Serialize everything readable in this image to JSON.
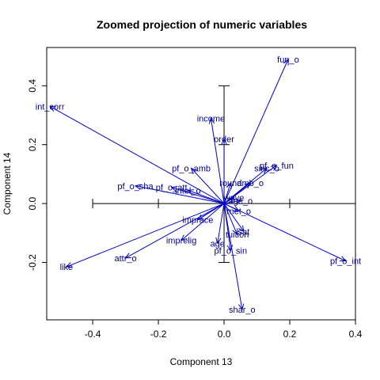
{
  "chart_data": {
    "type": "biplot",
    "title": "Zoomed projection of numeric variables",
    "xlabel": "Component 13",
    "ylabel": "Component 14",
    "xlim": [
      -0.54,
      0.4
    ],
    "ylim": [
      -0.395,
      0.53
    ],
    "xticks": [
      -0.4,
      -0.2,
      0.0,
      0.2,
      0.4
    ],
    "xtick_labels": [
      "-0.4",
      "-0.2",
      "0.0",
      "0.2",
      "0.4"
    ],
    "yticks": [
      -0.2,
      0.0,
      0.2,
      0.4
    ],
    "ytick_labels": [
      "-0.2",
      "0.0",
      "0.2",
      "0.4"
    ],
    "arrow_color": "#0000cd",
    "label_color": "#00008b",
    "crosshair": {
      "h_extent": [
        -0.4,
        0.4
      ],
      "v_extent": [
        -0.2,
        0.4
      ]
    },
    "variables": [
      {
        "name": "fun_o",
        "x": 0.195,
        "y": 0.49
      },
      {
        "name": "int_corr",
        "x": -0.53,
        "y": 0.33
      },
      {
        "name": "income",
        "x": -0.04,
        "y": 0.29
      },
      {
        "name": "order",
        "x": 0.0,
        "y": 0.22
      },
      {
        "name": "pf_o_fun",
        "x": 0.16,
        "y": 0.13
      },
      {
        "name": "sinc_o",
        "x": 0.13,
        "y": 0.12
      },
      {
        "name": "pf_o_amb",
        "x": -0.1,
        "y": 0.12
      },
      {
        "name": "round",
        "x": 0.02,
        "y": 0.07
      },
      {
        "name": "amb_o",
        "x": 0.08,
        "y": 0.07
      },
      {
        "name": "pf_o_sha",
        "x": -0.27,
        "y": 0.06
      },
      {
        "name": "pf_o_att",
        "x": -0.16,
        "y": 0.055
      },
      {
        "name": "intel_o",
        "x": -0.11,
        "y": 0.045
      },
      {
        "name": "wave",
        "x": 0.03,
        "y": 0.02
      },
      {
        "name": "age_o",
        "x": 0.05,
        "y": 0.01
      },
      {
        "name": "met_o",
        "x": 0.045,
        "y": -0.025
      },
      {
        "name": "imprace",
        "x": -0.08,
        "y": -0.055
      },
      {
        "name": "sat",
        "x": 0.06,
        "y": -0.095
      },
      {
        "name": "tuition",
        "x": 0.04,
        "y": -0.105
      },
      {
        "name": "imprelig",
        "x": -0.13,
        "y": -0.125
      },
      {
        "name": "age",
        "x": -0.02,
        "y": -0.135
      },
      {
        "name": "pf_o_sin",
        "x": 0.02,
        "y": -0.16
      },
      {
        "name": "attr_o",
        "x": -0.3,
        "y": -0.185
      },
      {
        "name": "pf_o_int",
        "x": 0.37,
        "y": -0.195
      },
      {
        "name": "like",
        "x": -0.48,
        "y": -0.215
      },
      {
        "name": "shar_o",
        "x": 0.055,
        "y": -0.36
      }
    ]
  }
}
